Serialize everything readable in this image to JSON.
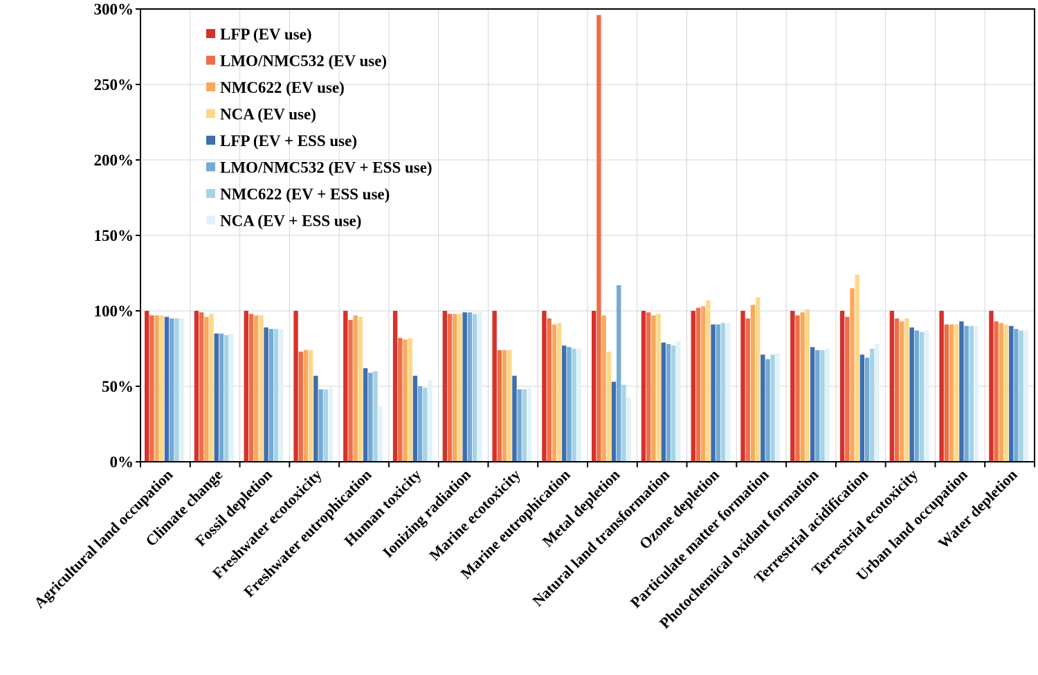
{
  "chart_data": {
    "type": "bar",
    "title": "",
    "xlabel": "",
    "ylabel": "",
    "ylim": [
      0,
      300
    ],
    "yticks": [
      "0%",
      "50%",
      "100%",
      "150%",
      "200%",
      "250%",
      "300%"
    ],
    "grid": true,
    "legend_position": "top-left",
    "categories": [
      "Agricultural land occupation",
      "Climate change",
      "Fossil depletion",
      "Freshwater ecotoxicity",
      "Freshwater eutrophication",
      "Human toxicity",
      "Ionizing radiation",
      "Marine ecotoxicity",
      "Marine eutrophication",
      "Metal depletion",
      "Natural land transformation",
      "Ozone depletion",
      "Particulate matter formation",
      "Photochemical oxidant formation",
      "Terrestrial acidification",
      "Terrestrial ecotoxicity",
      "Urban land occupation",
      "Water depletion"
    ],
    "series": [
      {
        "name": "LFP (EV use)",
        "color": "#d7312b",
        "values": [
          100,
          100,
          100,
          100,
          100,
          100,
          100,
          100,
          100,
          100,
          100,
          100,
          100,
          100,
          100,
          100,
          100,
          100
        ]
      },
      {
        "name": "LMO/NMC532 (EV use)",
        "color": "#ee6e48",
        "values": [
          97,
          99,
          98,
          73,
          94,
          82,
          98,
          74,
          95,
          296,
          99,
          102,
          95,
          97,
          96,
          95,
          91,
          93
        ]
      },
      {
        "name": "NMC622 (EV use)",
        "color": "#f8a95d",
        "values": [
          97,
          96,
          97,
          74,
          97,
          81,
          98,
          74,
          91,
          97,
          97,
          103,
          104,
          99,
          115,
          93,
          91,
          92
        ]
      },
      {
        "name": "NCA (EV use)",
        "color": "#fdd88a",
        "values": [
          97,
          98,
          97,
          74,
          96,
          82,
          98,
          74,
          92,
          73,
          98,
          107,
          109,
          101,
          124,
          95,
          91,
          91
        ]
      },
      {
        "name": "LFP (EV + ESS use)",
        "color": "#3d6fb0",
        "values": [
          96,
          85,
          89,
          57,
          62,
          57,
          99,
          57,
          77,
          53,
          79,
          91,
          71,
          76,
          71,
          89,
          93,
          90
        ]
      },
      {
        "name": "LMO/NMC532 (EV + ESS use)",
        "color": "#74aad4",
        "values": [
          95,
          85,
          88,
          48,
          59,
          50,
          99,
          48,
          76,
          117,
          78,
          91,
          68,
          74,
          69,
          87,
          90,
          88
        ]
      },
      {
        "name": "NMC622 (EV + ESS use)",
        "color": "#a7d3e6",
        "values": [
          95,
          84,
          88,
          48,
          60,
          49,
          98,
          48,
          75,
          51,
          77,
          92,
          71,
          74,
          75,
          86,
          90,
          87
        ]
      },
      {
        "name": "NCA (EV + ESS use)",
        "color": "#e1f2f9",
        "values": [
          95,
          85,
          88,
          49,
          37,
          54,
          99,
          49,
          75,
          43,
          80,
          92,
          72,
          75,
          78,
          87,
          90,
          87
        ]
      }
    ]
  }
}
